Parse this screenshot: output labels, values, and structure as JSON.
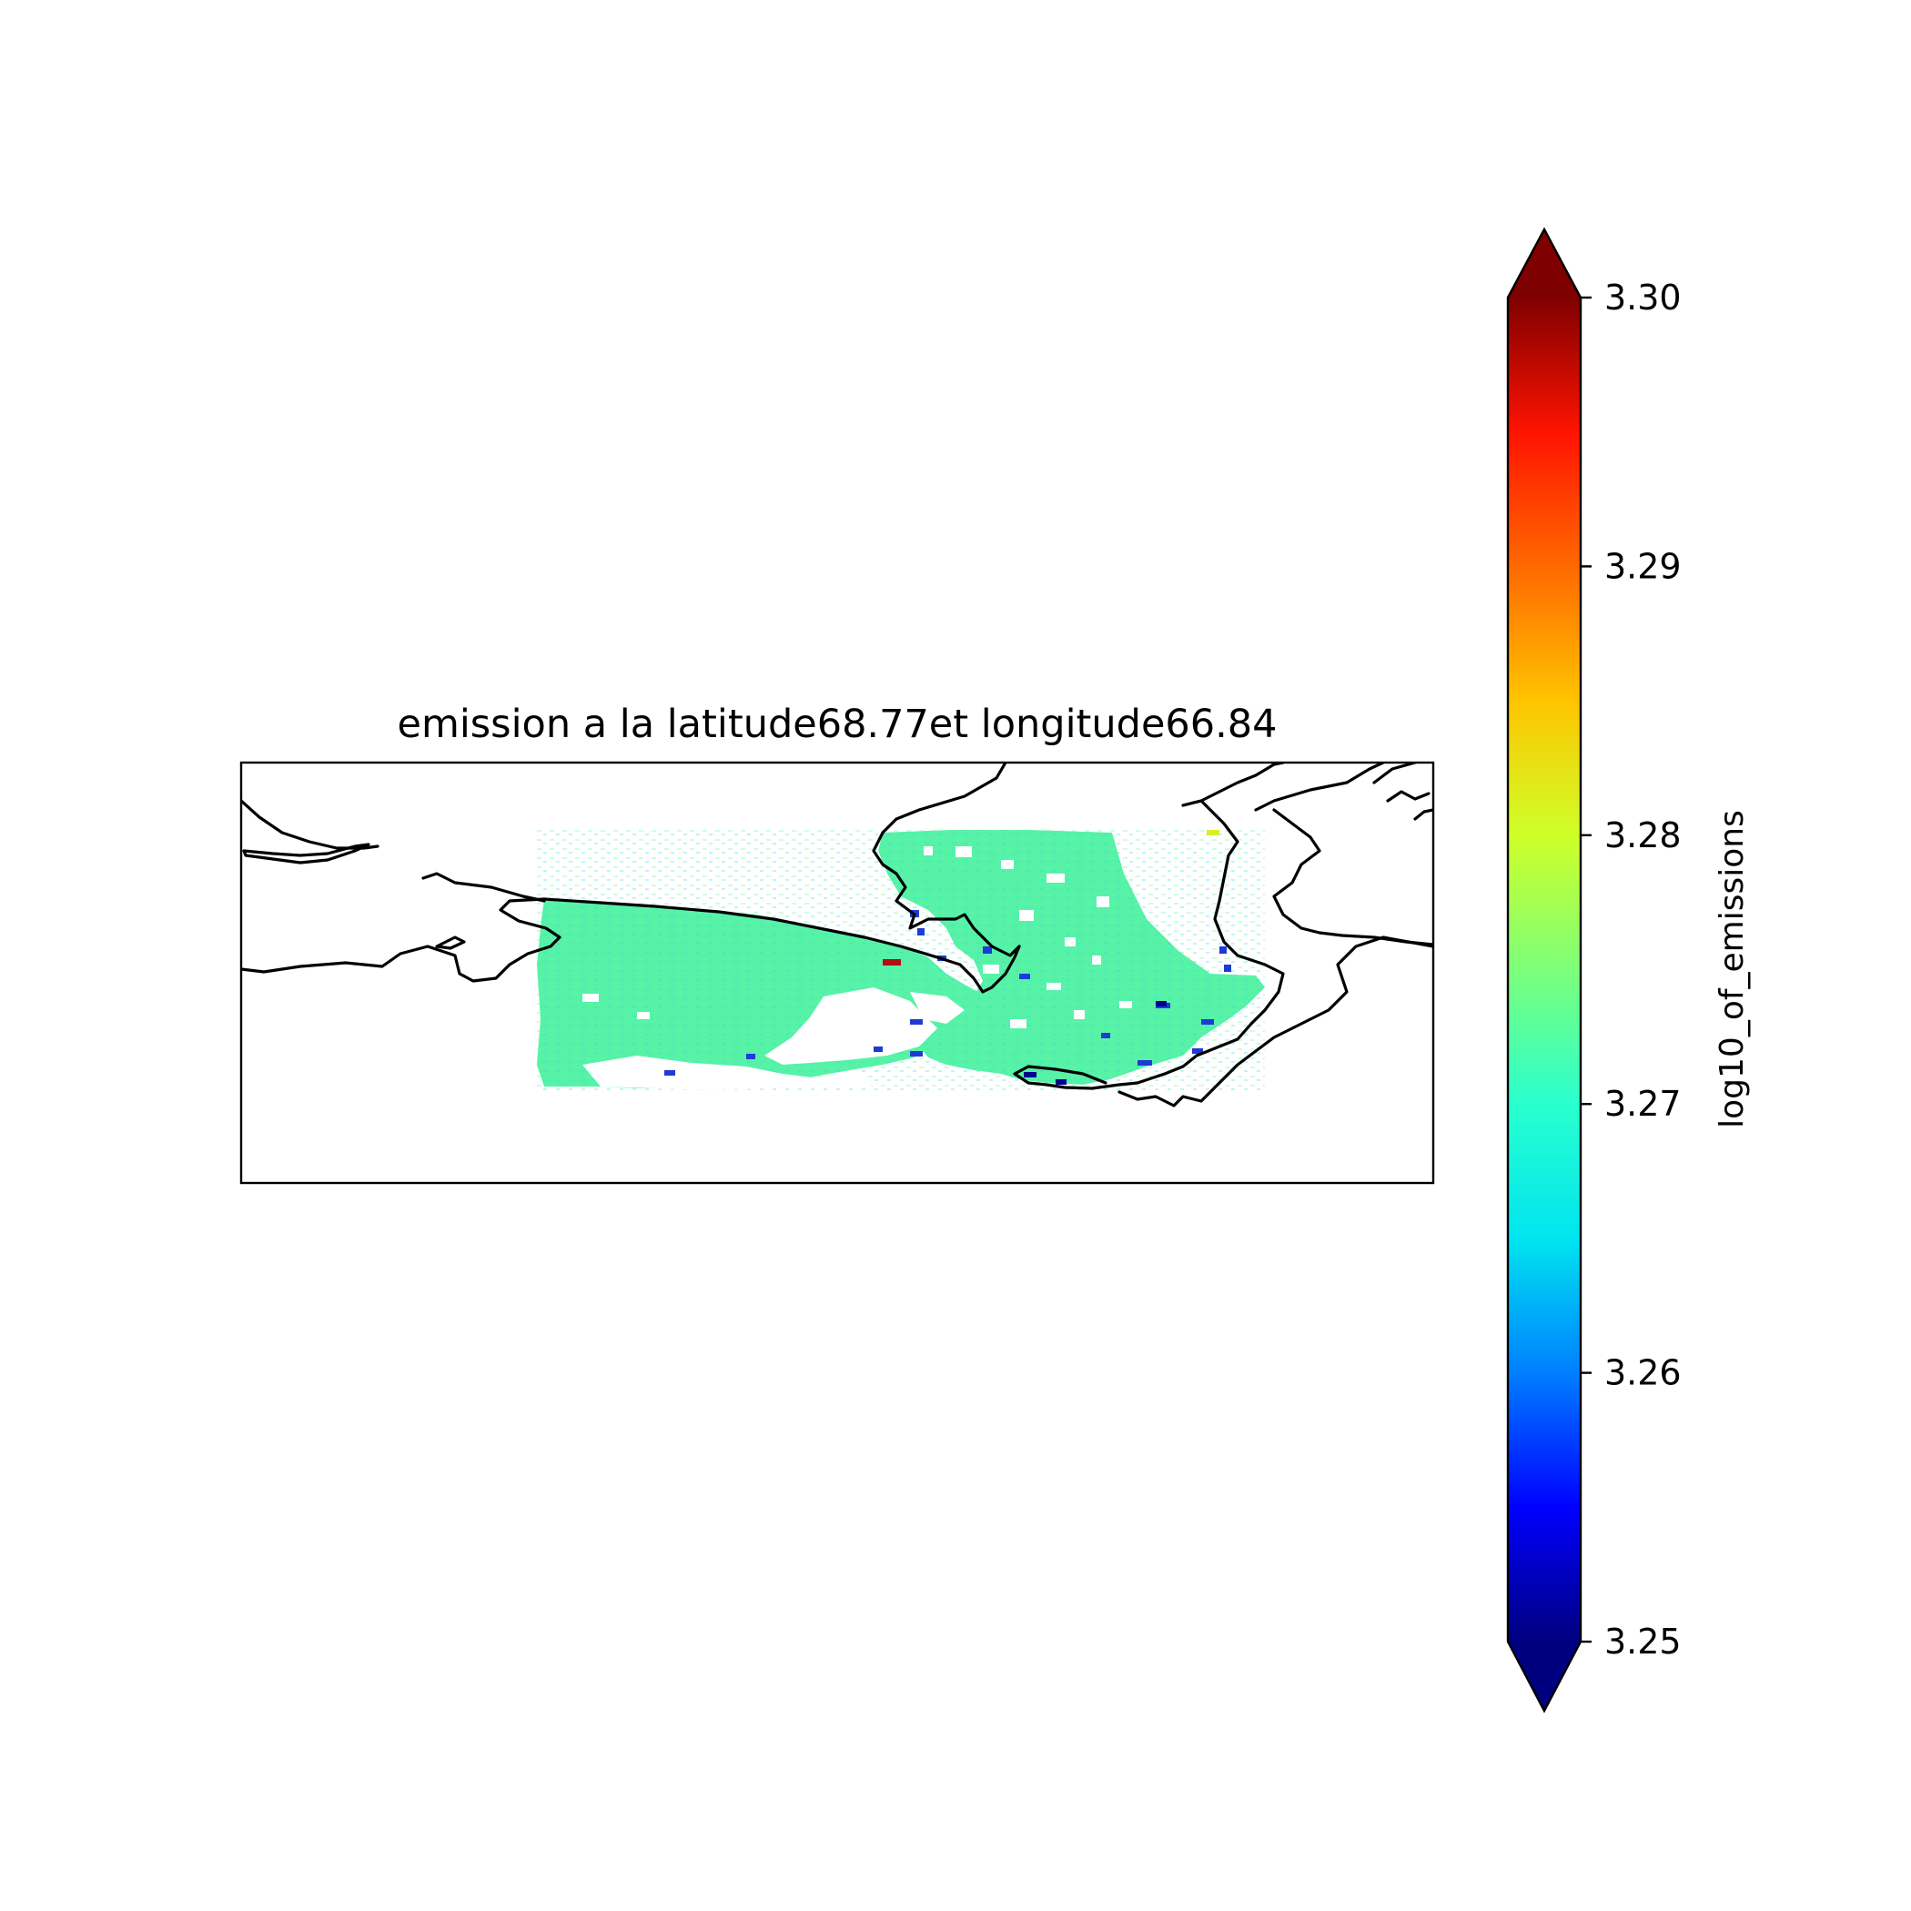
{
  "map": {
    "title": "emission a la latitude68.77et longitude66.84",
    "projection": "platecarree",
    "frame": "box",
    "variable": "log10_of_emissions",
    "colormap": "jet",
    "coastlines": "black"
  },
  "colorbar": {
    "label": "log10_of_emissions",
    "vmin": 3.25,
    "vmax": 3.3,
    "extend": "both",
    "orientation": "vertical",
    "placement": "right",
    "ticks": [
      "3.25",
      "3.26",
      "3.27",
      "3.28",
      "3.29",
      "3.30"
    ],
    "colors": [
      "#00007f",
      "#0000ff",
      "#007fff",
      "#00e5f0",
      "#29ffce",
      "#7dff7a",
      "#ceff29",
      "#ffc400",
      "#ff6800",
      "#ff1300",
      "#7f0000"
    ]
  },
  "field": {
    "dominant_value": 3.272,
    "dominant_color": "#55f2a8",
    "secondary_color": "#3fe6c8",
    "low_color": "#1f3bd6",
    "very_low_color": "#00008f",
    "peak_color": "#b01010",
    "peak_value": 3.3
  }
}
